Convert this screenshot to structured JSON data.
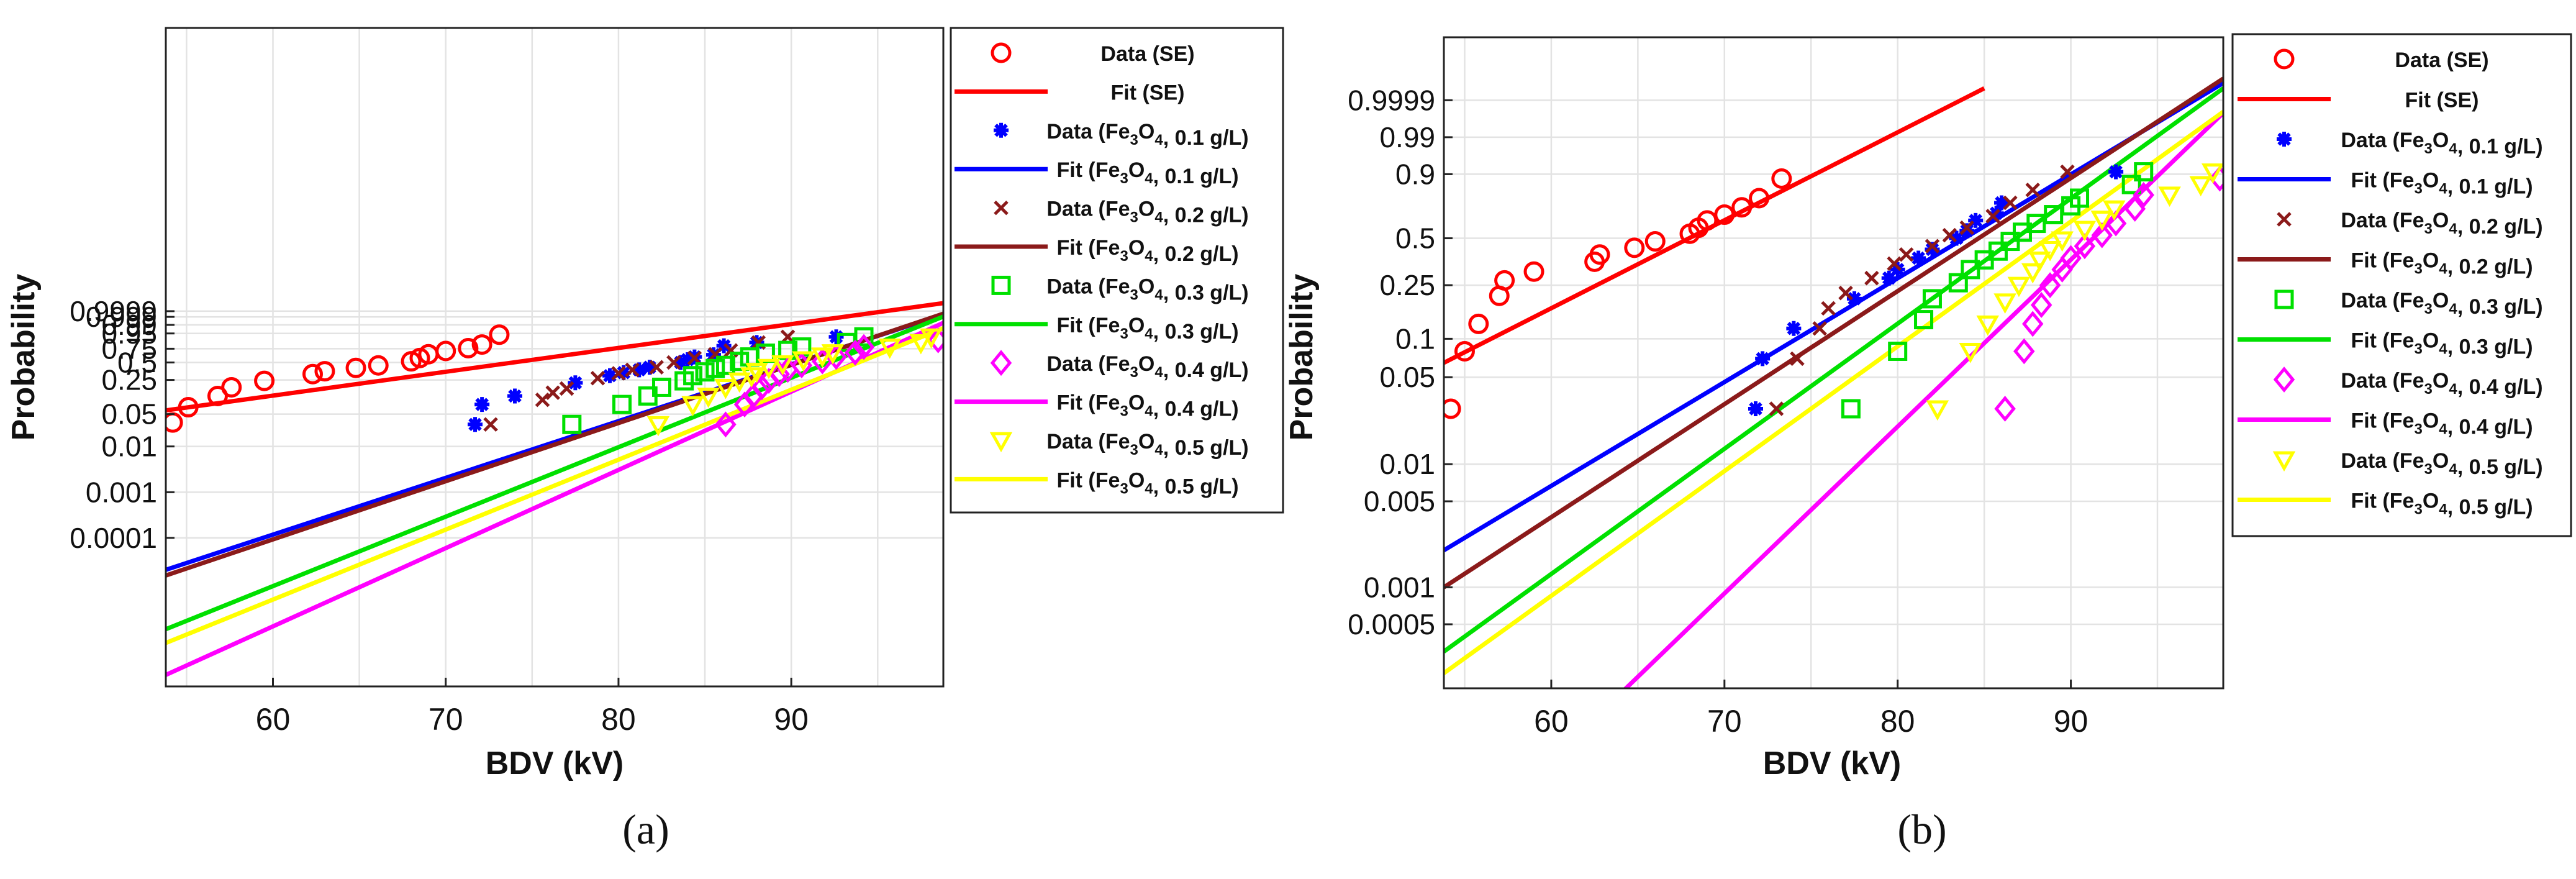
{
  "chart_data": [
    {
      "type": "scatter",
      "panel_label": "(a)",
      "xlabel": "BDV (kV)",
      "ylabel": "Probability",
      "xlim": [
        53.8,
        98.8
      ],
      "x_ticks": [
        60,
        70,
        80,
        90
      ],
      "x_grid": [
        55,
        60,
        65,
        70,
        75,
        80,
        85,
        90,
        95
      ],
      "y_ticks": [
        "0.9999",
        "0.999",
        "0.99",
        "0.95",
        "0.75",
        "0.5",
        "0.25",
        "0.05",
        "0.01",
        "0.001",
        "0.0001"
      ],
      "legend": [
        "Data (SE)",
        "Fit (SE)",
        "Data (Fe3O4, 0.1 g/L)",
        "Fit (Fe3O4, 0.1 g/L)",
        "Data (Fe3O4, 0.2 g/L)",
        "Fit (Fe3O4, 0.2 g/L)",
        "Data (Fe3O4, 0.3 g/L)",
        "Fit (Fe3O4, 0.3 g/L)",
        "Data (Fe3O4, 0.4 g/L)",
        "Fit (Fe3O4, 0.4 g/L)",
        "Data (Fe3O4, 0.5 g/L)",
        "Fit (Fe3O4, 0.5 g/L)"
      ],
      "series": [
        {
          "name": "SE",
          "color": "#ff0000",
          "marker": "circle",
          "points": [
            [
              54.2,
              0.033
            ],
            [
              55.1,
              0.07
            ],
            [
              56.8,
              0.12
            ],
            [
              57.6,
              0.18
            ],
            [
              59.5,
              0.24
            ],
            [
              62.3,
              0.32
            ],
            [
              63.0,
              0.36
            ],
            [
              64.8,
              0.41
            ],
            [
              66.1,
              0.45
            ],
            [
              68.0,
              0.52
            ],
            [
              68.5,
              0.58
            ],
            [
              69.0,
              0.65
            ],
            [
              70.0,
              0.71
            ],
            [
              71.3,
              0.76
            ],
            [
              72.1,
              0.82
            ],
            [
              73.1,
              0.94
            ]
          ],
          "fit": [
            [
              53.8,
              0.06
            ],
            [
              98.8,
              0.999999
            ]
          ]
        },
        {
          "name": "Fe3O4, 0.1 g/L",
          "color": "#0000ff",
          "marker": "star",
          "points": [
            [
              71.7,
              0.03
            ],
            [
              72.1,
              0.08
            ],
            [
              74.0,
              0.12
            ],
            [
              77.5,
              0.22
            ],
            [
              79.5,
              0.3
            ],
            [
              80.3,
              0.34
            ],
            [
              81.2,
              0.38
            ],
            [
              81.8,
              0.42
            ],
            [
              83.6,
              0.5
            ],
            [
              84.0,
              0.55
            ],
            [
              84.4,
              0.6
            ],
            [
              85.5,
              0.64
            ],
            [
              86.1,
              0.8
            ],
            [
              88.0,
              0.85
            ],
            [
              92.6,
              0.92
            ]
          ],
          "fit": [
            [
              53.8,
              2e-05
            ],
            [
              98.8,
              0.9996
            ]
          ]
        },
        {
          "name": "Fe3O4, 0.2 g/L",
          "color": "#8b1a1a",
          "marker": "x",
          "points": [
            [
              72.6,
              0.03
            ],
            [
              75.6,
              0.1
            ],
            [
              76.2,
              0.14
            ],
            [
              77.0,
              0.17
            ],
            [
              78.8,
              0.27
            ],
            [
              80.0,
              0.33
            ],
            [
              80.8,
              0.38
            ],
            [
              82.2,
              0.42
            ],
            [
              83.2,
              0.5
            ],
            [
              84.4,
              0.58
            ],
            [
              85.6,
              0.65
            ],
            [
              86.5,
              0.72
            ],
            [
              88.1,
              0.85
            ],
            [
              89.8,
              0.92
            ]
          ],
          "fit": [
            [
              53.8,
              1.5e-05
            ],
            [
              98.8,
              0.9997
            ]
          ]
        },
        {
          "name": "Fe3O4, 0.3 g/L",
          "color": "#00e000",
          "marker": "square",
          "points": [
            [
              77.3,
              0.03
            ],
            [
              80.2,
              0.08
            ],
            [
              81.7,
              0.12
            ],
            [
              82.5,
              0.18
            ],
            [
              83.8,
              0.24
            ],
            [
              84.3,
              0.3
            ],
            [
              85.0,
              0.35
            ],
            [
              85.6,
              0.4
            ],
            [
              86.2,
              0.45
            ],
            [
              87.0,
              0.52
            ],
            [
              87.6,
              0.6
            ],
            [
              88.5,
              0.67
            ],
            [
              89.8,
              0.72
            ],
            [
              90.6,
              0.78
            ],
            [
              93.2,
              0.85
            ],
            [
              94.2,
              0.92
            ]
          ],
          "fit": [
            [
              53.8,
              1e-06
            ],
            [
              98.8,
              0.9991
            ]
          ]
        },
        {
          "name": "Fe3O4, 0.4 g/L",
          "color": "#ff00ff",
          "marker": "diamond",
          "points": [
            [
              86.2,
              0.03
            ],
            [
              87.3,
              0.08
            ],
            [
              87.8,
              0.12
            ],
            [
              88.3,
              0.18
            ],
            [
              88.7,
              0.24
            ],
            [
              89.3,
              0.32
            ],
            [
              89.8,
              0.38
            ],
            [
              90.6,
              0.45
            ],
            [
              91.8,
              0.52
            ],
            [
              92.6,
              0.6
            ],
            [
              93.7,
              0.68
            ],
            [
              94.2,
              0.78
            ],
            [
              98.5,
              0.88
            ]
          ],
          "fit": [
            [
              53.8,
              1e-07
            ],
            [
              98.8,
              0.994
            ]
          ]
        },
        {
          "name": "Fe3O4, 0.5 g/L",
          "color": "#ffff00",
          "marker": "triangle",
          "points": [
            [
              82.3,
              0.03
            ],
            [
              84.3,
              0.08
            ],
            [
              85.2,
              0.12
            ],
            [
              86.2,
              0.18
            ],
            [
              87.0,
              0.24
            ],
            [
              87.7,
              0.3
            ],
            [
              88.0,
              0.36
            ],
            [
              88.7,
              0.42
            ],
            [
              89.5,
              0.48
            ],
            [
              90.7,
              0.55
            ],
            [
              91.8,
              0.62
            ],
            [
              92.4,
              0.68
            ],
            [
              95.7,
              0.78
            ],
            [
              97.5,
              0.85
            ],
            [
              98.1,
              0.92
            ]
          ],
          "fit": [
            [
              53.8,
              5e-07
            ],
            [
              98.8,
              0.98
            ]
          ]
        }
      ]
    },
    {
      "type": "scatter",
      "panel_label": "(b)",
      "xlabel": "BDV (kV)",
      "ylabel": "Probability",
      "xlim": [
        53.8,
        98.8
      ],
      "x_ticks": [
        60,
        70,
        80,
        90
      ],
      "x_grid": [
        55,
        60,
        65,
        70,
        75,
        80,
        85,
        90,
        95
      ],
      "y_ticks": [
        "0.9999",
        "0.99",
        "0.9",
        "0.5",
        "0.25",
        "0.1",
        "0.05",
        "0.01",
        "0.005",
        "0.001",
        "0.0005"
      ],
      "legend": [
        "Data (SE)",
        "Fit (SE)",
        "Data (Fe3O4, 0.1 g/L)",
        "Fit (Fe3O4, 0.1 g/L)",
        "Data (Fe3O4, 0.2 g/L)",
        "Fit (Fe3O4, 0.2 g/L)",
        "Data (Fe3O4, 0.3 g/L)",
        "Fit (Fe3O4, 0.3 g/L)",
        "Data (Fe3O4, 0.4 g/L)",
        "Fit (Fe3O4, 0.4 g/L)",
        "Data (Fe3O4, 0.5 g/L)",
        "Fit (Fe3O4, 0.5 g/L)"
      ],
      "series": [
        {
          "name": "SE",
          "color": "#ff0000",
          "marker": "circle",
          "points": [
            [
              54.2,
              0.028
            ],
            [
              55.0,
              0.08
            ],
            [
              55.8,
              0.13
            ],
            [
              57.0,
              0.21
            ],
            [
              57.3,
              0.27
            ],
            [
              59.0,
              0.31
            ],
            [
              62.5,
              0.36
            ],
            [
              62.8,
              0.4
            ],
            [
              64.8,
              0.44
            ],
            [
              66.0,
              0.48
            ],
            [
              68.0,
              0.53
            ],
            [
              68.5,
              0.57
            ],
            [
              69.0,
              0.62
            ],
            [
              70.0,
              0.66
            ],
            [
              71.0,
              0.71
            ],
            [
              72.0,
              0.77
            ],
            [
              73.3,
              0.88
            ]
          ],
          "fit": [
            [
              53.8,
              0.065
            ],
            [
              85.0,
              0.99999
            ]
          ]
        },
        {
          "name": "Fe3O4, 0.1 g/L",
          "color": "#0000ff",
          "marker": "star",
          "points": [
            [
              71.8,
              0.028
            ],
            [
              72.2,
              0.07
            ],
            [
              74.0,
              0.12
            ],
            [
              77.5,
              0.2
            ],
            [
              79.5,
              0.28
            ],
            [
              80.0,
              0.32
            ],
            [
              81.2,
              0.38
            ],
            [
              82.0,
              0.43
            ],
            [
              83.4,
              0.5
            ],
            [
              84.0,
              0.55
            ],
            [
              84.5,
              0.62
            ],
            [
              85.7,
              0.67
            ],
            [
              86.0,
              0.74
            ],
            [
              92.6,
              0.91
            ]
          ],
          "fit": [
            [
              53.8,
              0.002
            ],
            [
              98.8,
              0.999997
            ]
          ]
        },
        {
          "name": "Fe3O4, 0.2 g/L",
          "color": "#8b1a1a",
          "marker": "x",
          "points": [
            [
              73.0,
              0.028
            ],
            [
              74.2,
              0.07
            ],
            [
              75.5,
              0.12
            ],
            [
              76.0,
              0.17
            ],
            [
              77.0,
              0.22
            ],
            [
              78.5,
              0.28
            ],
            [
              79.8,
              0.35
            ],
            [
              80.5,
              0.4
            ],
            [
              82.0,
              0.45
            ],
            [
              83.0,
              0.52
            ],
            [
              84.0,
              0.57
            ],
            [
              85.5,
              0.65
            ],
            [
              86.5,
              0.74
            ],
            [
              87.8,
              0.82
            ],
            [
              89.8,
              0.91
            ]
          ],
          "fit": [
            [
              53.8,
              0.001
            ],
            [
              98.8,
              0.999999
            ]
          ]
        },
        {
          "name": "Fe3O4, 0.3 g/L",
          "color": "#00e000",
          "marker": "square",
          "points": [
            [
              77.3,
              0.028
            ],
            [
              80.0,
              0.08
            ],
            [
              81.5,
              0.14
            ],
            [
              82.0,
              0.2
            ],
            [
              83.5,
              0.26
            ],
            [
              84.2,
              0.32
            ],
            [
              85.0,
              0.37
            ],
            [
              85.8,
              0.42
            ],
            [
              86.5,
              0.48
            ],
            [
              87.2,
              0.54
            ],
            [
              88.0,
              0.6
            ],
            [
              89.0,
              0.66
            ],
            [
              90.0,
              0.72
            ],
            [
              90.5,
              0.77
            ],
            [
              93.5,
              0.85
            ],
            [
              94.2,
              0.91
            ]
          ],
          "fit": [
            [
              53.8,
              0.0003
            ],
            [
              98.8,
              0.99999
            ]
          ]
        },
        {
          "name": "Fe3O4, 0.4 g/L",
          "color": "#ff00ff",
          "marker": "diamond",
          "points": [
            [
              86.2,
              0.028
            ],
            [
              87.3,
              0.08
            ],
            [
              87.8,
              0.13
            ],
            [
              88.3,
              0.18
            ],
            [
              88.8,
              0.25
            ],
            [
              89.5,
              0.32
            ],
            [
              90.0,
              0.38
            ],
            [
              90.8,
              0.45
            ],
            [
              91.8,
              0.52
            ],
            [
              92.6,
              0.6
            ],
            [
              93.7,
              0.7
            ],
            [
              94.2,
              0.79
            ],
            [
              98.6,
              0.88
            ]
          ],
          "fit": [
            [
              63.0,
              0.0001
            ],
            [
              98.8,
              0.9993
            ]
          ]
        },
        {
          "name": "Fe3O4, 0.5 g/L",
          "color": "#ffff00",
          "marker": "triangle",
          "points": [
            [
              82.3,
              0.028
            ],
            [
              84.2,
              0.08
            ],
            [
              85.2,
              0.13
            ],
            [
              86.2,
              0.19
            ],
            [
              87.0,
              0.25
            ],
            [
              87.8,
              0.31
            ],
            [
              88.2,
              0.37
            ],
            [
              88.8,
              0.43
            ],
            [
              89.5,
              0.49
            ],
            [
              90.8,
              0.56
            ],
            [
              91.8,
              0.63
            ],
            [
              92.5,
              0.7
            ],
            [
              95.7,
              0.79
            ],
            [
              97.5,
              0.85
            ],
            [
              98.2,
              0.91
            ]
          ],
          "fit": [
            [
              53.8,
              0.0002
            ],
            [
              98.8,
              0.9994
            ]
          ]
        }
      ]
    }
  ]
}
